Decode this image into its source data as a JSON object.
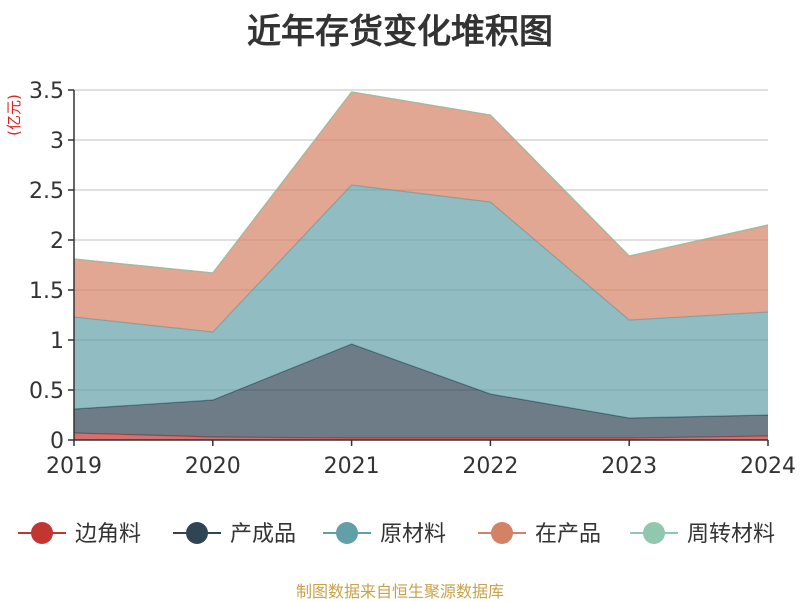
{
  "chart_data": {
    "type": "area",
    "stacked": true,
    "title": "近年存货变化堆积图",
    "unit_label": "(亿元)",
    "source_note": "制图数据来自恒生聚源数据库",
    "x": [
      "2019",
      "2020",
      "2021",
      "2022",
      "2023",
      "2024"
    ],
    "ylim": [
      0,
      3.5
    ],
    "yticks": [
      "0",
      "0.5",
      "1",
      "1.5",
      "2",
      "2.5",
      "3",
      "3.5"
    ],
    "grid": true,
    "legend_position": "bottom",
    "series": [
      {
        "name": "边角料",
        "color": "#c23531",
        "values": [
          0.07,
          0.03,
          0.02,
          0.02,
          0.02,
          0.04
        ]
      },
      {
        "name": "产成品",
        "color": "#2f4554",
        "values": [
          0.24,
          0.37,
          0.94,
          0.44,
          0.2,
          0.21
        ]
      },
      {
        "name": "原材料",
        "color": "#61a0a8",
        "values": [
          0.92,
          0.68,
          1.59,
          1.92,
          0.98,
          1.03
        ]
      },
      {
        "name": "在产品",
        "color": "#d48265",
        "values": [
          0.58,
          0.59,
          0.93,
          0.87,
          0.64,
          0.87
        ]
      },
      {
        "name": "周转材料",
        "color": "#91c7ae",
        "values": [
          0.0,
          0.0,
          0.0,
          0.0,
          0.0,
          0.0
        ]
      }
    ]
  }
}
